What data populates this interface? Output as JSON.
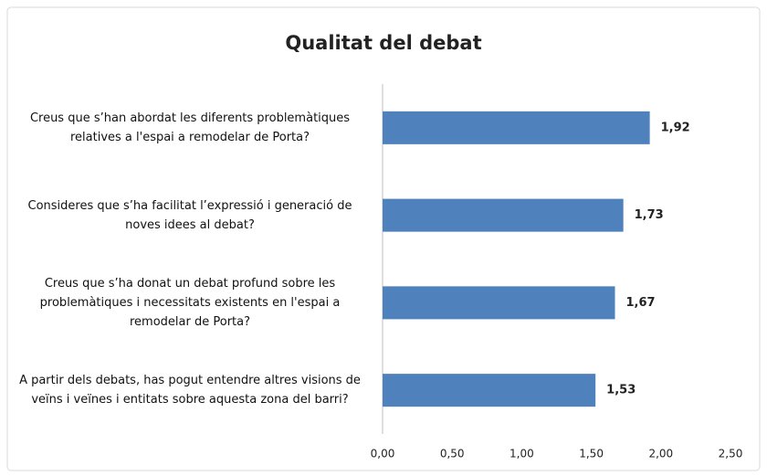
{
  "chart_data": {
    "type": "bar",
    "orientation": "horizontal",
    "title": "Qualitat del debat",
    "categories": [
      "Creus que s’han abordat les diferents problemàtiques relatives a l'espai a remodelar de Porta?",
      "Consideres que s’ha facilitat l’expressió i generació de noves idees al debat?",
      "Creus que s’ha donat un debat profund sobre les problemàtiques i necessitats existents en l'espai a remodelar de Porta?",
      "A partir dels debats, has pogut entendre altres visions de veïns i veïnes i entitats sobre aquesta zona del barri?"
    ],
    "values": [
      1.92,
      1.73,
      1.67,
      1.53
    ],
    "value_labels": [
      "1,92",
      "1,73",
      "1,67",
      "1,53"
    ],
    "color": "#4f81bd",
    "xlim": [
      0,
      2.5
    ],
    "xticks": [
      {
        "value": 0,
        "label": "0,00"
      },
      {
        "value": 0.5,
        "label": "0,50"
      },
      {
        "value": 1,
        "label": "1,00"
      },
      {
        "value": 1.5,
        "label": "1,50"
      },
      {
        "value": 2,
        "label": "2,00"
      },
      {
        "value": 2.5,
        "label": "2,50"
      }
    ],
    "grid": false
  }
}
